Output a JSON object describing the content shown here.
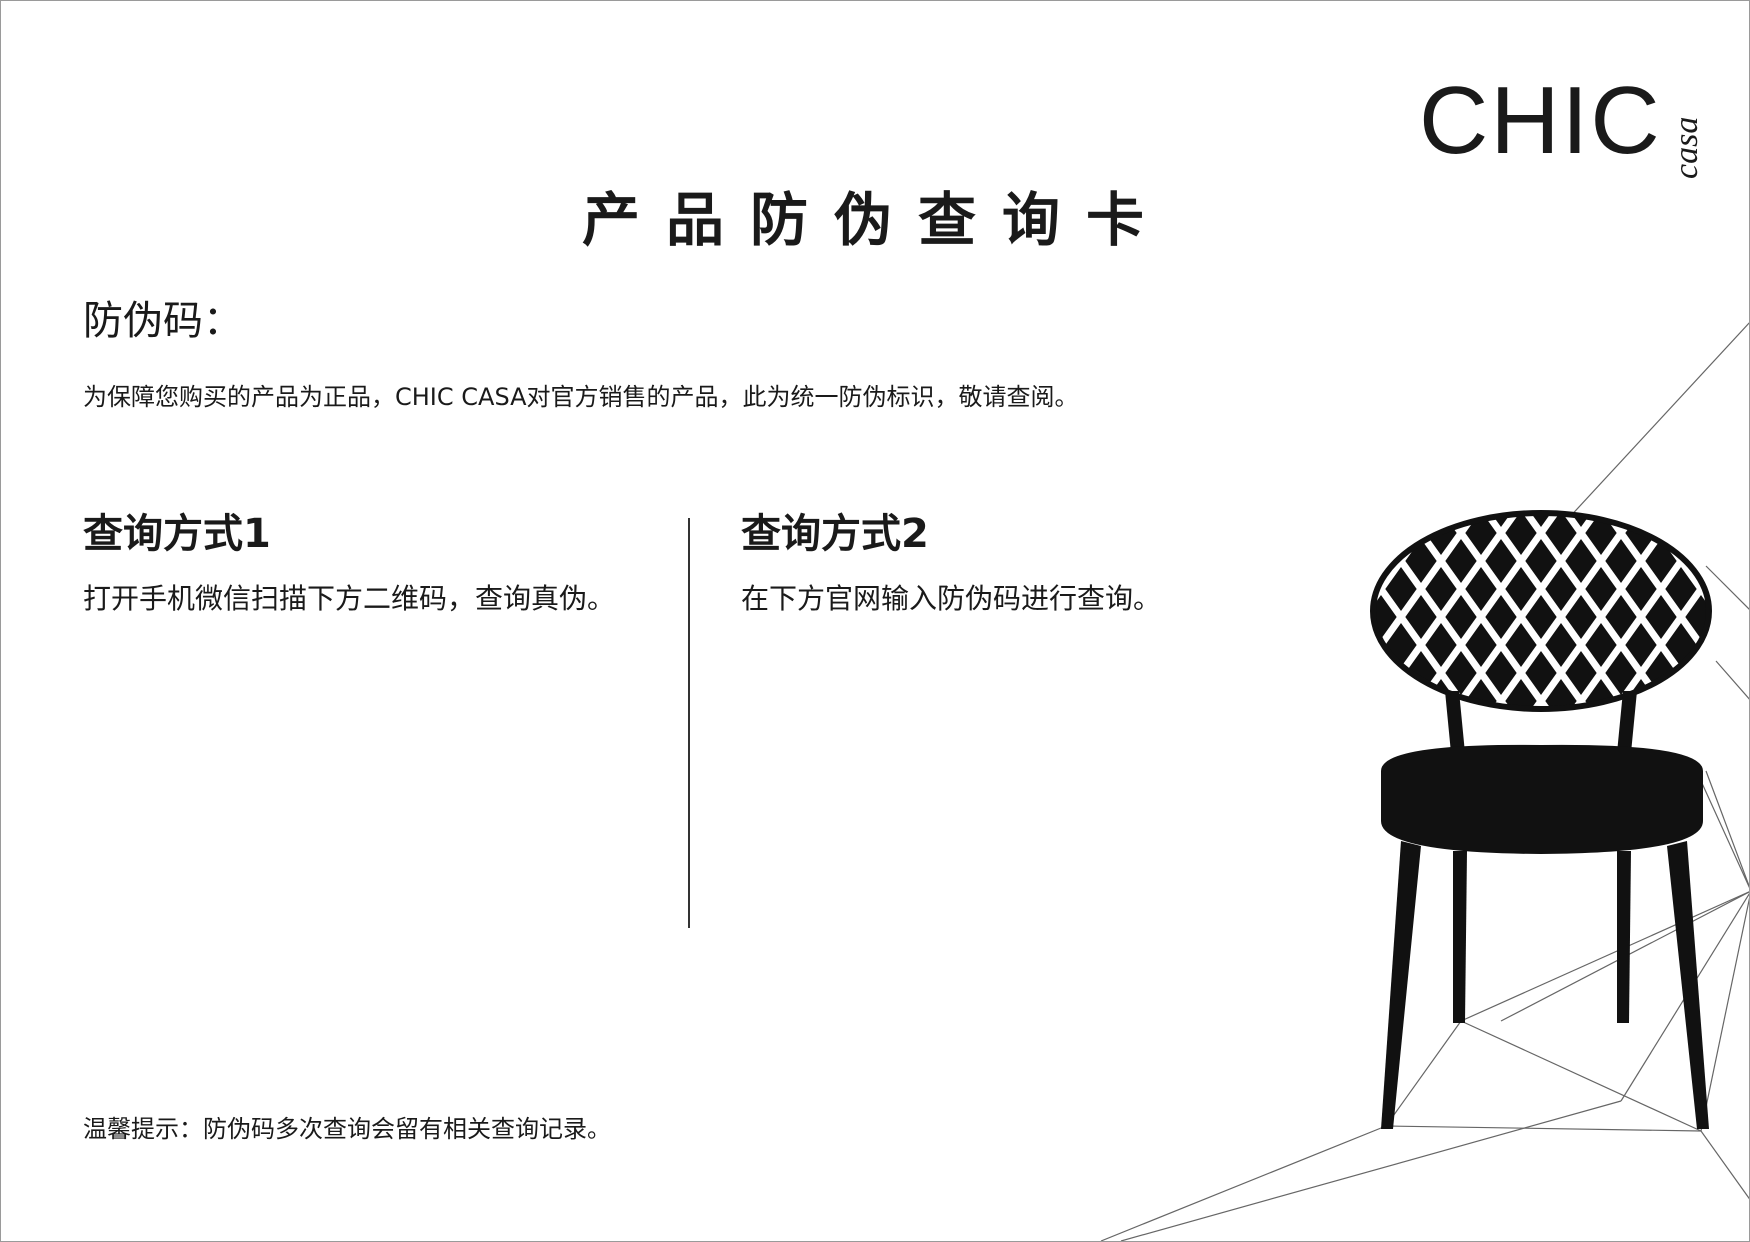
{
  "brand": {
    "name": "CHIC",
    "sub": "casa"
  },
  "card": {
    "title": "产品防伪查询卡",
    "code_label": "防伪码：",
    "intro": "为保障您购买的产品为正品，CHIC CASA对官方销售的产品，此为统一防伪标识，敬请查阅。",
    "method1": {
      "title": "查询方式1",
      "desc": "打开手机微信扫描下方二维码，查询真伪。"
    },
    "method2": {
      "title": "查询方式2",
      "desc": "在下方官网输入防伪码进行查询。"
    },
    "tip": "温馨提示：防伪码多次查询会留有相关查询记录。"
  },
  "colors": {
    "ink": "#1a1a1a",
    "border": "#9a9a9a",
    "background": "#ffffff"
  }
}
